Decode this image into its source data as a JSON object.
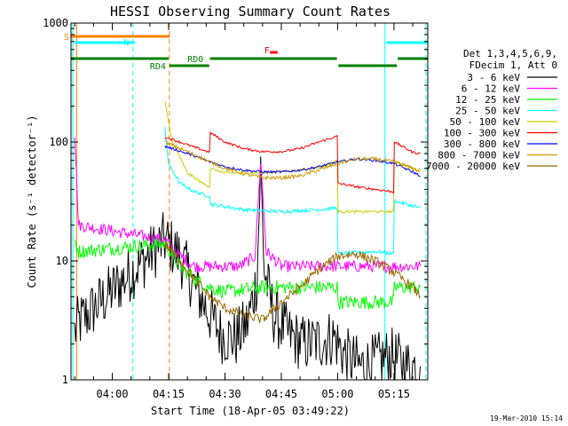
{
  "chart_data": {
    "type": "line",
    "title": "HESSI Observing Summary Count Rates",
    "xlabel": "Start Time (18-Apr-05 03:49:22)",
    "ylabel": "Count Rate (s⁻¹ detector⁻¹)",
    "x_tick_labels": [
      "04:00",
      "04:15",
      "04:30",
      "04:45",
      "05:00",
      "05:15"
    ],
    "x_ticks_min": [
      0,
      15,
      30,
      45,
      60,
      75
    ],
    "xlim_min": [
      -11,
      84
    ],
    "y_scale": "log",
    "ylim": [
      1,
      1000
    ],
    "y_tick_labels": [
      "1",
      "10",
      "100",
      "1000"
    ],
    "legend_header": [
      "Det 1,3,4,5,6,9,",
      "FDecim 1, Att 0"
    ],
    "timestamp": "19-Mar-2010 15:14",
    "series": [
      {
        "name": "3 - 6 keV",
        "color": "#000000",
        "points": [
          [
            -10,
            2.5
          ],
          [
            -9,
            3
          ],
          [
            14,
            15
          ],
          [
            18,
            11
          ],
          [
            22,
            6
          ],
          [
            26,
            3.5
          ],
          [
            29,
            2.4
          ],
          [
            33,
            2.2
          ],
          [
            36,
            3
          ],
          [
            38.5,
            7
          ],
          [
            39.5,
            60
          ],
          [
            40.5,
            8
          ],
          [
            43,
            3.5
          ],
          [
            47,
            2.4
          ],
          [
            51,
            2
          ],
          [
            55,
            2.1
          ],
          [
            59,
            2.3
          ],
          [
            62,
            1.6
          ],
          [
            66,
            1.3
          ],
          [
            70,
            1.4
          ],
          [
            74,
            1.6
          ],
          [
            78,
            1.3
          ],
          [
            82,
            1.3
          ]
        ],
        "noise": 0.5
      },
      {
        "name": "6 - 12 keV",
        "color": "#ff00ff",
        "points": [
          [
            -10,
            120
          ],
          [
            -9,
            20
          ],
          [
            14,
            15
          ],
          [
            18,
            11
          ],
          [
            22,
            9
          ],
          [
            26,
            9
          ],
          [
            30,
            9
          ],
          [
            34,
            9
          ],
          [
            38,
            11
          ],
          [
            39.5,
            70
          ],
          [
            41,
            12
          ],
          [
            45,
            9
          ],
          [
            50,
            9
          ],
          [
            55,
            9
          ],
          [
            60,
            9
          ],
          [
            66,
            9
          ],
          [
            72,
            9
          ],
          [
            78,
            9
          ],
          [
            82,
            9
          ]
        ],
        "noise": 0.1
      },
      {
        "name": "12 - 25 keV",
        "color": "#00ff00",
        "points": [
          [
            -10,
            15
          ],
          [
            -9,
            12
          ],
          [
            14,
            14
          ],
          [
            18,
            9
          ],
          [
            22,
            7
          ],
          [
            26,
            6
          ],
          [
            30,
            5.5
          ],
          [
            40,
            6
          ],
          [
            50,
            6
          ],
          [
            59.9,
            6
          ],
          [
            60.1,
            4.5
          ],
          [
            70,
            4.5
          ],
          [
            74.9,
            4.5
          ],
          [
            75.1,
            6
          ],
          [
            82,
            6
          ]
        ],
        "noise": 0.12
      },
      {
        "name": "25 - 50 keV",
        "color": "#00ffff",
        "points": [
          [
            14,
            130
          ],
          [
            15,
            65
          ],
          [
            18,
            45
          ],
          [
            22,
            38
          ],
          [
            25.9,
            35
          ],
          [
            26.1,
            30
          ],
          [
            35,
            27
          ],
          [
            45,
            26
          ],
          [
            55,
            27
          ],
          [
            59.9,
            28
          ],
          [
            60.1,
            11.5
          ],
          [
            70,
            12
          ],
          [
            74.9,
            11.5
          ],
          [
            75.1,
            32
          ],
          [
            80,
            29
          ],
          [
            82,
            28
          ]
        ],
        "noise": 0.03
      },
      {
        "name": "50 - 100 keV",
        "color": "#cccc00",
        "points": [
          [
            14,
            220
          ],
          [
            16,
            100
          ],
          [
            20,
            55
          ],
          [
            24,
            45
          ],
          [
            25.9,
            42
          ],
          [
            26.1,
            60
          ],
          [
            30,
            55
          ],
          [
            40,
            55
          ],
          [
            50,
            58
          ],
          [
            56,
            62
          ],
          [
            59.9,
            70
          ],
          [
            60.1,
            26
          ],
          [
            70,
            26
          ],
          [
            74.9,
            26
          ],
          [
            75.1,
            70
          ],
          [
            80,
            60
          ],
          [
            82,
            58
          ]
        ],
        "noise": 0.02
      },
      {
        "name": "100 - 300 keV",
        "color": "#ff0000",
        "points": [
          [
            14,
            110
          ],
          [
            18,
            100
          ],
          [
            22,
            90
          ],
          [
            25.9,
            82
          ],
          [
            26.1,
            120
          ],
          [
            30,
            100
          ],
          [
            35,
            88
          ],
          [
            40,
            83
          ],
          [
            45,
            83
          ],
          [
            50,
            88
          ],
          [
            55,
            100
          ],
          [
            59.9,
            112
          ],
          [
            60.1,
            45
          ],
          [
            65,
            42
          ],
          [
            70,
            40
          ],
          [
            74.9,
            38
          ],
          [
            75.1,
            100
          ],
          [
            80,
            82
          ],
          [
            82,
            80
          ]
        ],
        "noise": 0.02
      },
      {
        "name": "300 - 800 keV",
        "color": "#0000ff",
        "points": [
          [
            14,
            92
          ],
          [
            18,
            84
          ],
          [
            22,
            76
          ],
          [
            26,
            68
          ],
          [
            30,
            62
          ],
          [
            35,
            58
          ],
          [
            40,
            56
          ],
          [
            45,
            56
          ],
          [
            50,
            58
          ],
          [
            55,
            62
          ],
          [
            60,
            68
          ],
          [
            65,
            72
          ],
          [
            70,
            70
          ],
          [
            75,
            66
          ],
          [
            80,
            56
          ],
          [
            82,
            52
          ]
        ],
        "noise": 0.02
      },
      {
        "name": "800 - 7000 keV",
        "color": "#cc9900",
        "points": [
          [
            14,
            100
          ],
          [
            18,
            88
          ],
          [
            22,
            78
          ],
          [
            26,
            68
          ],
          [
            30,
            60
          ],
          [
            35,
            54
          ],
          [
            40,
            50
          ],
          [
            45,
            50
          ],
          [
            50,
            52
          ],
          [
            55,
            58
          ],
          [
            60,
            66
          ],
          [
            65,
            72
          ],
          [
            70,
            72
          ],
          [
            75,
            68
          ],
          [
            80,
            60
          ],
          [
            82,
            56
          ]
        ],
        "noise": 0.03
      },
      {
        "name": "7000 - 20000 keV",
        "color": "#996600",
        "points": [
          [
            14,
            14
          ],
          [
            18,
            10
          ],
          [
            22,
            7
          ],
          [
            26,
            5
          ],
          [
            30,
            4
          ],
          [
            35,
            3.5
          ],
          [
            40,
            3.2
          ],
          [
            45,
            4.5
          ],
          [
            50,
            6
          ],
          [
            55,
            8.5
          ],
          [
            60,
            11
          ],
          [
            65,
            11.5
          ],
          [
            70,
            10
          ],
          [
            75,
            8
          ],
          [
            80,
            6
          ],
          [
            82,
            5
          ]
        ],
        "noise": 0.08
      }
    ],
    "attenuator_line": {
      "color": "#ff8000",
      "label": "S",
      "segments_min": [
        [
          -11,
          15.3
        ]
      ]
    },
    "night_flags": {
      "color": "#00ffff",
      "label": "N",
      "segments_min": [
        [
          -10,
          6
        ],
        [
          73,
          84
        ]
      ]
    },
    "flare_flag": {
      "color": "#ff0000",
      "label": "F",
      "segments_min": [
        [
          42,
          44
        ]
      ]
    },
    "decimation_flags": {
      "color": "#008000",
      "labels": [
        {
          "text": "RD0",
          "at_min": 20
        },
        {
          "text": "RD4",
          "at_min": 10
        }
      ],
      "segments_high": [
        [
          -11,
          15
        ],
        [
          26,
          59.8
        ],
        [
          76,
          84
        ]
      ],
      "segments_low": [
        [
          15.2,
          25.8
        ],
        [
          60.2,
          75.8
        ]
      ]
    },
    "vertical_markers": [
      {
        "x_min": -10.5,
        "color": "#00ffff",
        "style": "solid"
      },
      {
        "x_min": -9.5,
        "color": "#ff8000",
        "style": "solid"
      },
      {
        "x_min": 5.5,
        "color": "#00ffff",
        "style": "dashed"
      },
      {
        "x_min": 15.2,
        "color": "#ff8000",
        "style": "dashed"
      },
      {
        "x_min": 72.6,
        "color": "#00ffff",
        "style": "solid"
      },
      {
        "x_min": 83.5,
        "color": "#00ffff",
        "style": "dashed"
      }
    ],
    "grid": false,
    "legend_position": "right"
  }
}
